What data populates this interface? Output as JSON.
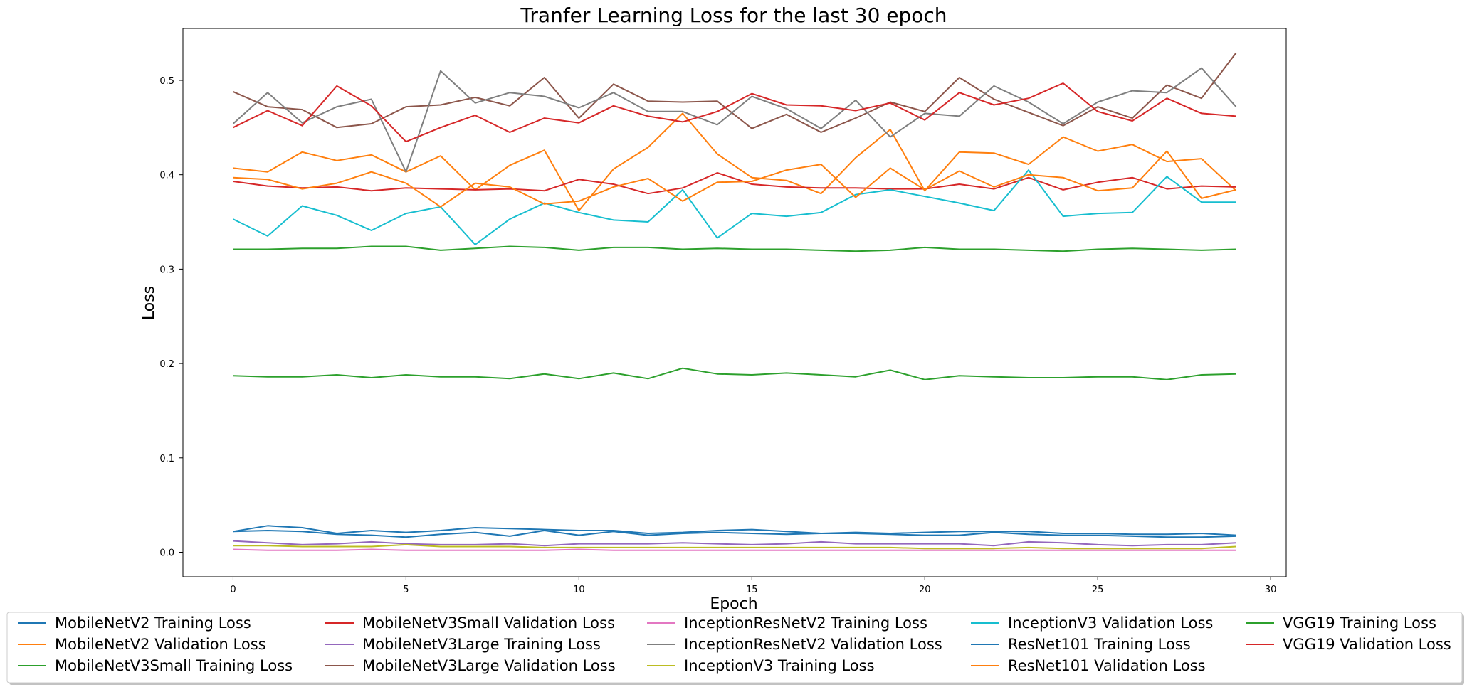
{
  "chart_data": {
    "type": "line",
    "title": "Tranfer Learning Loss for the last 30 epoch",
    "xlabel": "Epoch",
    "ylabel": "Loss",
    "xlim": [
      -1.45,
      30.45
    ],
    "ylim": [
      -0.026,
      0.555
    ],
    "xticks": [
      0,
      5,
      10,
      15,
      20,
      25,
      30
    ],
    "yticks": [
      0.0,
      0.1,
      0.2,
      0.3,
      0.4,
      0.5
    ],
    "grid": false,
    "legend_position": "bottom",
    "x": [
      0,
      1,
      2,
      3,
      4,
      5,
      6,
      7,
      8,
      9,
      10,
      11,
      12,
      13,
      14,
      15,
      16,
      17,
      18,
      19,
      20,
      21,
      22,
      23,
      24,
      25,
      26,
      27,
      28,
      29
    ],
    "series": [
      {
        "name": "MobileNetV2 Training Loss",
        "color": "#1f77b4",
        "values": [
          0.022,
          0.028,
          0.026,
          0.02,
          0.023,
          0.021,
          0.023,
          0.026,
          0.025,
          0.024,
          0.023,
          0.023,
          0.02,
          0.021,
          0.023,
          0.024,
          0.022,
          0.02,
          0.021,
          0.02,
          0.021,
          0.022,
          0.022,
          0.022,
          0.02,
          0.02,
          0.019,
          0.019,
          0.02,
          0.018
        ]
      },
      {
        "name": "MobileNetV2 Validation Loss",
        "color": "#ff7f0e",
        "values": [
          0.407,
          0.403,
          0.424,
          0.415,
          0.421,
          0.403,
          0.42,
          0.384,
          0.41,
          0.426,
          0.362,
          0.406,
          0.429,
          0.465,
          0.422,
          0.397,
          0.394,
          0.38,
          0.418,
          0.448,
          0.383,
          0.424,
          0.423,
          0.411,
          0.44,
          0.425,
          0.432,
          0.414,
          0.417,
          0.383
        ]
      },
      {
        "name": "MobileNetV3Small Training Loss",
        "color": "#2ca02c",
        "values": [
          0.321,
          0.321,
          0.322,
          0.322,
          0.324,
          0.324,
          0.32,
          0.322,
          0.324,
          0.323,
          0.32,
          0.323,
          0.323,
          0.321,
          0.322,
          0.321,
          0.321,
          0.32,
          0.319,
          0.32,
          0.323,
          0.321,
          0.321,
          0.32,
          0.319,
          0.321,
          0.322,
          0.321,
          0.32,
          0.321
        ]
      },
      {
        "name": "MobileNetV3Small Validation Loss",
        "color": "#d62728",
        "values": [
          0.393,
          0.388,
          0.386,
          0.387,
          0.383,
          0.386,
          0.385,
          0.384,
          0.385,
          0.383,
          0.395,
          0.39,
          0.38,
          0.386,
          0.402,
          0.39,
          0.387,
          0.386,
          0.386,
          0.385,
          0.385,
          0.39,
          0.385,
          0.397,
          0.384,
          0.392,
          0.397,
          0.385,
          0.388,
          0.387
        ]
      },
      {
        "name": "MobileNetV3Large Training Loss",
        "color": "#9467bd",
        "values": [
          0.012,
          0.01,
          0.008,
          0.009,
          0.011,
          0.009,
          0.008,
          0.008,
          0.009,
          0.007,
          0.009,
          0.009,
          0.009,
          0.01,
          0.009,
          0.008,
          0.009,
          0.011,
          0.009,
          0.009,
          0.009,
          0.009,
          0.007,
          0.011,
          0.01,
          0.008,
          0.007,
          0.008,
          0.008,
          0.01
        ]
      },
      {
        "name": "MobileNetV3Large Validation Loss",
        "color": "#8c564b",
        "values": [
          0.488,
          0.472,
          0.469,
          0.45,
          0.454,
          0.472,
          0.474,
          0.482,
          0.473,
          0.503,
          0.46,
          0.496,
          0.478,
          0.477,
          0.478,
          0.449,
          0.464,
          0.445,
          0.46,
          0.477,
          0.467,
          0.503,
          0.48,
          0.466,
          0.452,
          0.472,
          0.46,
          0.495,
          0.481,
          0.529
        ]
      },
      {
        "name": "InceptionResNetV2 Training Loss",
        "color": "#e377c2",
        "values": [
          0.003,
          0.002,
          0.002,
          0.002,
          0.003,
          0.002,
          0.002,
          0.002,
          0.002,
          0.002,
          0.003,
          0.002,
          0.002,
          0.002,
          0.002,
          0.002,
          0.002,
          0.002,
          0.002,
          0.002,
          0.002,
          0.002,
          0.002,
          0.002,
          0.002,
          0.002,
          0.002,
          0.002,
          0.002,
          0.002
        ]
      },
      {
        "name": "InceptionResNetV2 Validation Loss",
        "color": "#7f7f7f",
        "values": [
          0.454,
          0.487,
          0.455,
          0.472,
          0.48,
          0.403,
          0.51,
          0.476,
          0.487,
          0.483,
          0.471,
          0.487,
          0.467,
          0.467,
          0.453,
          0.483,
          0.47,
          0.449,
          0.479,
          0.44,
          0.465,
          0.462,
          0.494,
          0.477,
          0.454,
          0.477,
          0.489,
          0.487,
          0.513,
          0.472
        ]
      },
      {
        "name": "InceptionV3 Training Loss",
        "color": "#bcbd22",
        "values": [
          0.007,
          0.007,
          0.006,
          0.006,
          0.006,
          0.008,
          0.006,
          0.006,
          0.006,
          0.005,
          0.005,
          0.005,
          0.005,
          0.005,
          0.005,
          0.005,
          0.005,
          0.005,
          0.005,
          0.005,
          0.004,
          0.004,
          0.004,
          0.005,
          0.004,
          0.004,
          0.004,
          0.004,
          0.004,
          0.006
        ]
      },
      {
        "name": "InceptionV3 Validation Loss",
        "color": "#17becf",
        "values": [
          0.353,
          0.335,
          0.367,
          0.357,
          0.341,
          0.359,
          0.366,
          0.326,
          0.353,
          0.37,
          0.36,
          0.352,
          0.35,
          0.384,
          0.333,
          0.359,
          0.356,
          0.36,
          0.379,
          0.384,
          0.377,
          0.37,
          0.362,
          0.405,
          0.356,
          0.359,
          0.36,
          0.398,
          0.371,
          0.371
        ]
      },
      {
        "name": "ResNet101 Training Loss",
        "color": "#1f77b4",
        "values": [
          0.022,
          0.023,
          0.022,
          0.019,
          0.018,
          0.016,
          0.019,
          0.021,
          0.017,
          0.023,
          0.018,
          0.022,
          0.018,
          0.02,
          0.021,
          0.02,
          0.019,
          0.02,
          0.02,
          0.019,
          0.018,
          0.018,
          0.021,
          0.019,
          0.018,
          0.018,
          0.017,
          0.016,
          0.016,
          0.017
        ]
      },
      {
        "name": "ResNet101 Validation Loss",
        "color": "#ff7f0e",
        "values": [
          0.397,
          0.395,
          0.385,
          0.391,
          0.403,
          0.391,
          0.366,
          0.391,
          0.387,
          0.369,
          0.372,
          0.387,
          0.396,
          0.372,
          0.392,
          0.393,
          0.405,
          0.411,
          0.376,
          0.407,
          0.384,
          0.404,
          0.387,
          0.4,
          0.397,
          0.383,
          0.386,
          0.425,
          0.375,
          0.384
        ]
      },
      {
        "name": "VGG19 Training Loss",
        "color": "#2ca02c",
        "values": [
          0.187,
          0.186,
          0.186,
          0.188,
          0.185,
          0.188,
          0.186,
          0.186,
          0.184,
          0.189,
          0.184,
          0.19,
          0.184,
          0.195,
          0.189,
          0.188,
          0.19,
          0.188,
          0.186,
          0.193,
          0.183,
          0.187,
          0.186,
          0.185,
          0.185,
          0.186,
          0.186,
          0.183,
          0.188,
          0.189
        ]
      },
      {
        "name": "VGG19 Validation Loss",
        "color": "#d62728",
        "values": [
          0.45,
          0.468,
          0.452,
          0.494,
          0.473,
          0.435,
          0.45,
          0.463,
          0.445,
          0.46,
          0.455,
          0.473,
          0.462,
          0.456,
          0.467,
          0.486,
          0.474,
          0.473,
          0.468,
          0.476,
          0.458,
          0.487,
          0.474,
          0.481,
          0.497,
          0.467,
          0.457,
          0.481,
          0.465,
          0.462
        ]
      }
    ]
  }
}
